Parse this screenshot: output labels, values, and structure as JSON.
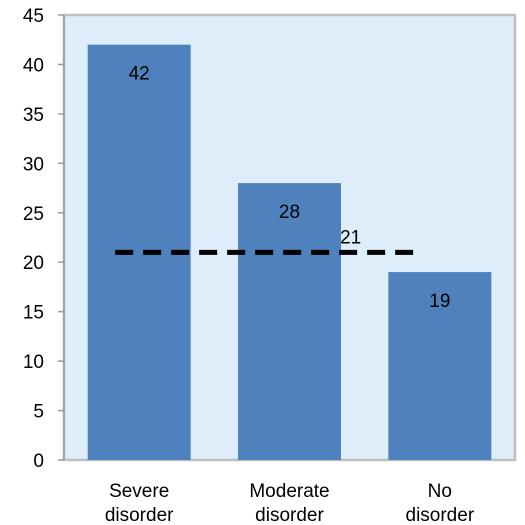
{
  "chart_data": {
    "type": "bar",
    "title": "",
    "xlabel": "",
    "ylabel": "",
    "categories": [
      [
        "Severe",
        "disorder"
      ],
      [
        "Moderate",
        "disorder"
      ],
      [
        "No",
        "disorder"
      ]
    ],
    "values": [
      42,
      28,
      19
    ],
    "data_labels": [
      "42",
      "28",
      "19"
    ],
    "ylim": [
      0,
      45
    ],
    "yticks": [
      0,
      5,
      10,
      15,
      20,
      25,
      30,
      35,
      40,
      45
    ],
    "grid": false,
    "legend": "none",
    "reference_line": {
      "value": 21,
      "label": "21",
      "style": "dashed"
    },
    "colors": {
      "bar": "#4F81BD",
      "plot_background": "#DDEEFA",
      "plot_border": "#BFBFBF",
      "reference_line": "#000000"
    }
  }
}
